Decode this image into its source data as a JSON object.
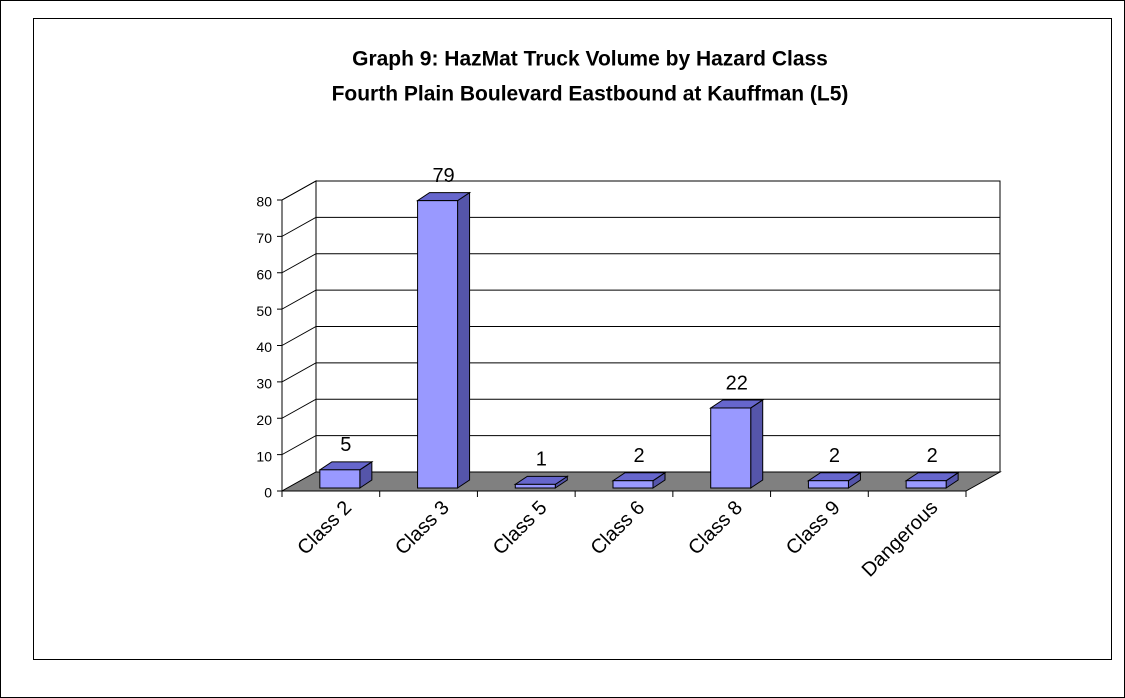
{
  "chart_data": {
    "type": "bar3d",
    "title": "Graph 9: HazMat Truck Volume by Hazard Class",
    "subtitle": "Fourth Plain Boulevard Eastbound at Kauffman (L5)",
    "categories": [
      "Class 2",
      "Class 3",
      "Class 5",
      "Class 6",
      "Class 8",
      "Class 9",
      "Dangerous"
    ],
    "values": [
      5,
      79,
      1,
      2,
      22,
      2,
      2
    ],
    "color": "#9999ff",
    "ylim": [
      0,
      80
    ],
    "yticks": [
      0,
      10,
      20,
      30,
      40,
      50,
      60,
      70,
      80
    ],
    "grid": true
  }
}
